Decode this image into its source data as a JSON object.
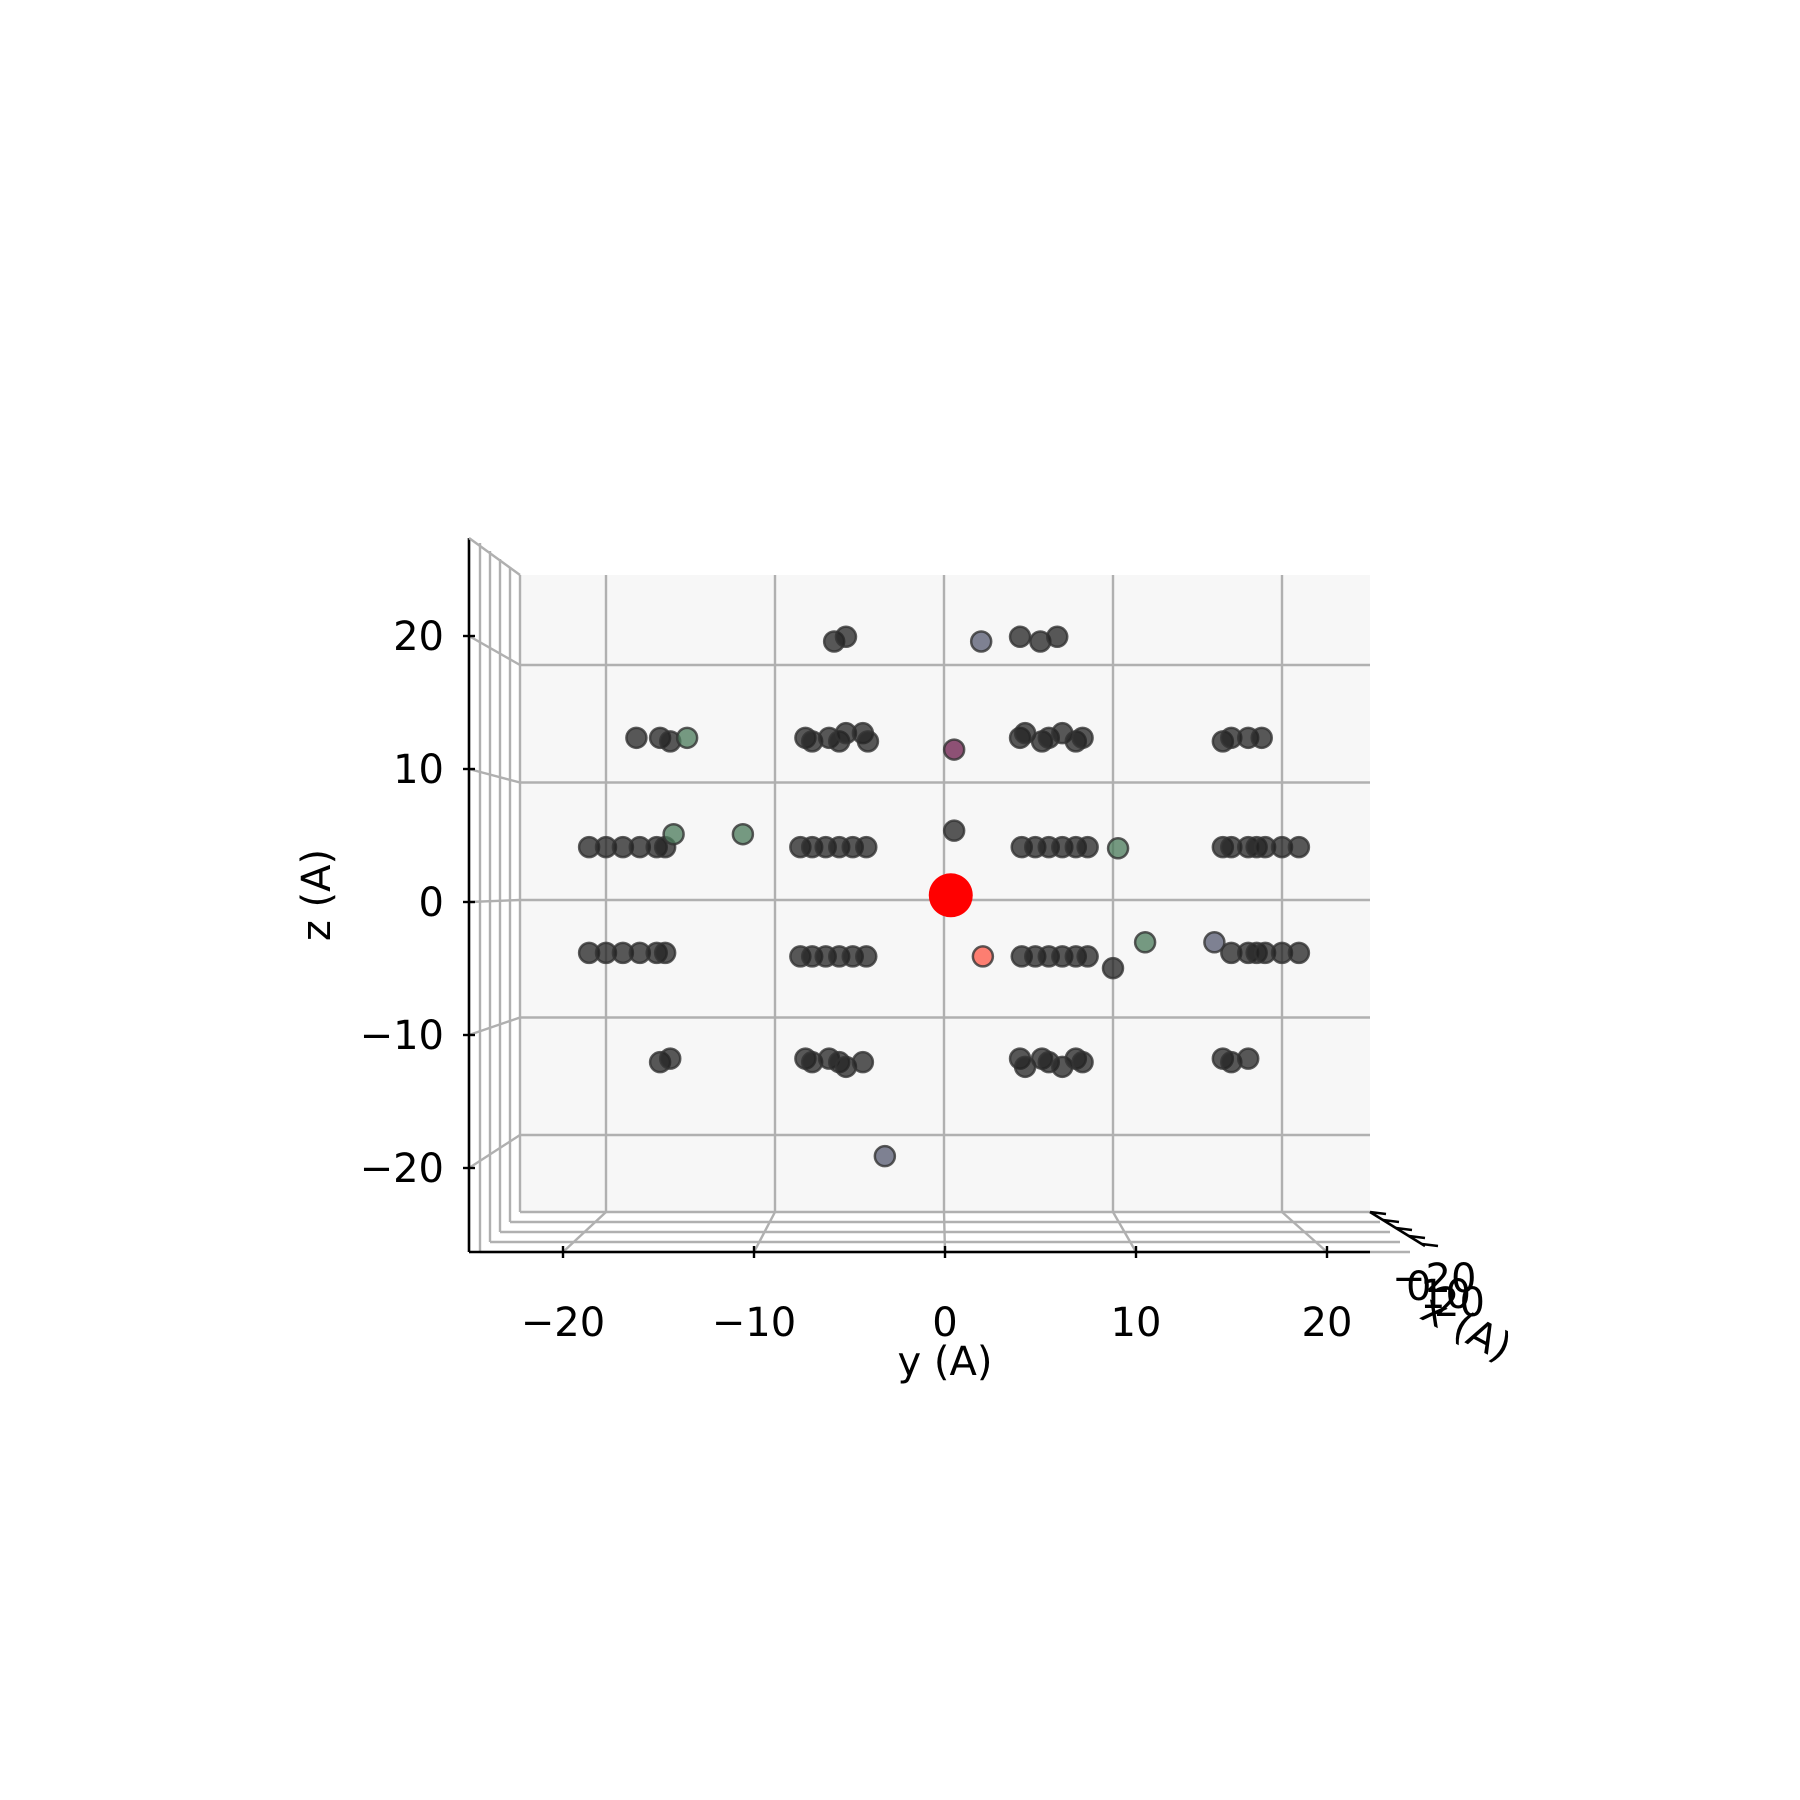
{
  "chart_data": {
    "type": "scatter",
    "projection": "3d",
    "view": "looking down the x axis (y horizontal, z vertical)",
    "grid": true,
    "xlabel": "x (A)",
    "ylabel": "y (A)",
    "zlabel": "z (A)",
    "ylim": [
      -25,
      22
    ],
    "zlim": [
      -26,
      28
    ],
    "y_ticks": [
      -20,
      -10,
      0,
      10,
      20
    ],
    "y_tick_labels": [
      "−20",
      "−10",
      "0",
      "10",
      "20"
    ],
    "z_ticks": [
      -20,
      -10,
      0,
      10,
      20
    ],
    "z_tick_labels": [
      "−20",
      "−10",
      "0",
      "10",
      "20"
    ],
    "x_tick_labels": [
      "−20",
      "0",
      "10",
      "20"
    ],
    "highlight_point": {
      "y": 0.4,
      "z": 0.4,
      "color": "#ff0000"
    },
    "series": [
      {
        "color": "#222222",
        "points": [
          {
            "y": -21,
            "z": 4.5
          },
          {
            "y": -20,
            "z": 4.5
          },
          {
            "y": -19,
            "z": 4.5
          },
          {
            "y": -18,
            "z": 4.5
          },
          {
            "y": -17,
            "z": 4.5
          },
          {
            "y": -16.5,
            "z": 4.5
          },
          {
            "y": -21,
            "z": -4.5
          },
          {
            "y": -20,
            "z": -4.5
          },
          {
            "y": -19,
            "z": -4.5
          },
          {
            "y": -18,
            "z": -4.5
          },
          {
            "y": -17,
            "z": -4.5
          },
          {
            "y": -16.5,
            "z": -4.5
          },
          {
            "y": -18.2,
            "z": 13.8
          },
          {
            "y": -16.8,
            "z": 13.8
          },
          {
            "y": -16.2,
            "z": 13.5
          },
          {
            "y": -16.8,
            "z": -13.8
          },
          {
            "y": -16.2,
            "z": -13.5
          },
          {
            "y": -8.2,
            "z": 13.8
          },
          {
            "y": -7.8,
            "z": 13.5
          },
          {
            "y": -6.8,
            "z": 13.8
          },
          {
            "y": -6.2,
            "z": 13.5
          },
          {
            "y": -5.8,
            "z": 14.2
          },
          {
            "y": -4.8,
            "z": 14.2
          },
          {
            "y": -4.5,
            "z": 13.5
          },
          {
            "y": -8.5,
            "z": 4.5
          },
          {
            "y": -7.8,
            "z": 4.5
          },
          {
            "y": -7,
            "z": 4.5
          },
          {
            "y": -6.2,
            "z": 4.5
          },
          {
            "y": -5.4,
            "z": 4.5
          },
          {
            "y": -4.6,
            "z": 4.5
          },
          {
            "y": -8.5,
            "z": -4.8
          },
          {
            "y": -7.8,
            "z": -4.8
          },
          {
            "y": -7,
            "z": -4.8
          },
          {
            "y": -6.2,
            "z": -4.8
          },
          {
            "y": -5.4,
            "z": -4.8
          },
          {
            "y": -4.6,
            "z": -4.8
          },
          {
            "y": -8.2,
            "z": -13.5
          },
          {
            "y": -7.8,
            "z": -13.8
          },
          {
            "y": -6.8,
            "z": -13.5
          },
          {
            "y": -6.2,
            "z": -13.8
          },
          {
            "y": -5.8,
            "z": -14.2
          },
          {
            "y": -4.8,
            "z": -13.8
          },
          {
            "y": -6.5,
            "z": 22
          },
          {
            "y": -5.8,
            "z": 22.4
          },
          {
            "y": 4.5,
            "z": 13.8
          },
          {
            "y": 4.8,
            "z": 14.2
          },
          {
            "y": 5.8,
            "z": 13.5
          },
          {
            "y": 6.2,
            "z": 13.8
          },
          {
            "y": 7,
            "z": 14.2
          },
          {
            "y": 7.8,
            "z": 13.5
          },
          {
            "y": 8.2,
            "z": 13.8
          },
          {
            "y": 4.6,
            "z": 4.5
          },
          {
            "y": 5.4,
            "z": 4.5
          },
          {
            "y": 6.2,
            "z": 4.5
          },
          {
            "y": 7,
            "z": 4.5
          },
          {
            "y": 7.8,
            "z": 4.5
          },
          {
            "y": 8.5,
            "z": 4.5
          },
          {
            "y": 4.6,
            "z": -4.8
          },
          {
            "y": 5.4,
            "z": -4.8
          },
          {
            "y": 6.2,
            "z": -4.8
          },
          {
            "y": 7,
            "z": -4.8
          },
          {
            "y": 7.8,
            "z": -4.8
          },
          {
            "y": 8.5,
            "z": -4.8
          },
          {
            "y": 4.5,
            "z": -13.5
          },
          {
            "y": 4.8,
            "z": -14.2
          },
          {
            "y": 5.8,
            "z": -13.5
          },
          {
            "y": 6.2,
            "z": -13.8
          },
          {
            "y": 7,
            "z": -14.2
          },
          {
            "y": 7.8,
            "z": -13.5
          },
          {
            "y": 8.2,
            "z": -13.8
          },
          {
            "y": 4.5,
            "z": 22.4
          },
          {
            "y": 5.7,
            "z": 22
          },
          {
            "y": 6.7,
            "z": 22.4
          },
          {
            "y": 16.5,
            "z": 13.5
          },
          {
            "y": 17,
            "z": 13.8
          },
          {
            "y": 18,
            "z": 13.8
          },
          {
            "y": 18.8,
            "z": 13.8
          },
          {
            "y": 16.5,
            "z": 4.5
          },
          {
            "y": 17,
            "z": 4.5
          },
          {
            "y": 18,
            "z": 4.5
          },
          {
            "y": 18.5,
            "z": 4.5
          },
          {
            "y": 19,
            "z": 4.5
          },
          {
            "y": 20,
            "z": 4.5
          },
          {
            "y": 21,
            "z": 4.5
          },
          {
            "y": 17,
            "z": -4.5
          },
          {
            "y": 18,
            "z": -4.5
          },
          {
            "y": 18.5,
            "z": -4.5
          },
          {
            "y": 19,
            "z": -4.5
          },
          {
            "y": 20,
            "z": -4.5
          },
          {
            "y": 21,
            "z": -4.5
          },
          {
            "y": 16.5,
            "z": -13.5
          },
          {
            "y": 17,
            "z": -13.8
          },
          {
            "y": 18,
            "z": -13.5
          },
          {
            "y": 0.6,
            "z": 5.9
          },
          {
            "y": 10,
            "z": -5.8
          }
        ]
      },
      {
        "color": "#555a70",
        "points": [
          {
            "y": 2.2,
            "z": 22
          },
          {
            "y": -3.5,
            "z": -21.8
          },
          {
            "y": 16,
            "z": -3.6
          }
        ]
      },
      {
        "color": "#4a7a5a",
        "points": [
          {
            "y": -15.2,
            "z": 13.8
          },
          {
            "y": -11.9,
            "z": 5.6
          },
          {
            "y": -16,
            "z": 5.6
          },
          {
            "y": 10.3,
            "z": 4.4
          },
          {
            "y": 11.9,
            "z": -3.6
          }
        ]
      },
      {
        "color": "#6b1a4a",
        "points": [
          {
            "y": 0.6,
            "z": 12.8
          }
        ]
      },
      {
        "color": "#ff5544",
        "points": [
          {
            "y": 2.3,
            "z": -4.8
          }
        ]
      }
    ]
  }
}
